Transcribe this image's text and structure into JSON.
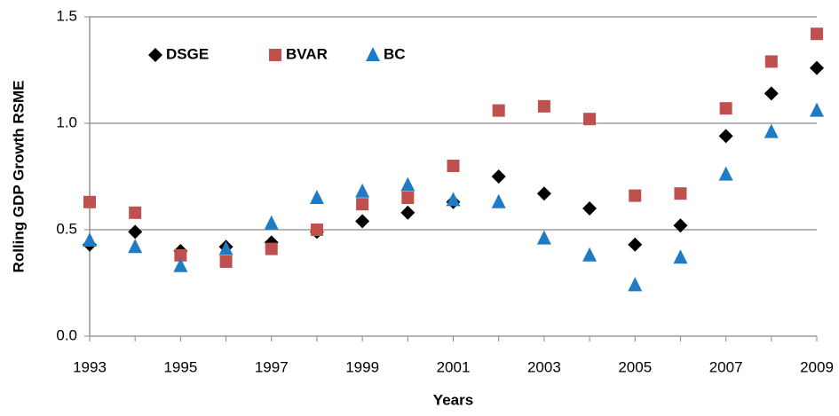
{
  "chart_data": {
    "type": "scatter",
    "x_label": "Years",
    "y_label": "Rolling GDP Growth RSME",
    "x": [
      1993,
      1994,
      1995,
      1996,
      1997,
      1998,
      1999,
      2000,
      2001,
      2002,
      2003,
      2004,
      2005,
      2006,
      2007,
      2008,
      2009
    ],
    "series": [
      {
        "name": "DSGE",
        "color": "#000000",
        "marker": "diamond",
        "values": [
          0.43,
          0.49,
          0.4,
          0.42,
          0.44,
          0.49,
          0.54,
          0.58,
          0.63,
          0.75,
          0.67,
          0.6,
          0.43,
          0.52,
          0.94,
          1.14,
          1.26
        ]
      },
      {
        "name": "BVAR",
        "color": "#c0504d",
        "marker": "square",
        "values": [
          0.63,
          0.58,
          0.38,
          0.35,
          0.41,
          0.5,
          0.62,
          0.65,
          0.8,
          1.06,
          1.08,
          1.02,
          0.66,
          0.67,
          1.07,
          1.29,
          1.42
        ]
      },
      {
        "name": "BC",
        "color": "#1f7bc4",
        "marker": "triangle",
        "values": [
          0.45,
          0.42,
          0.33,
          0.41,
          0.53,
          0.65,
          0.68,
          0.71,
          0.64,
          0.63,
          0.46,
          0.38,
          0.24,
          0.37,
          0.76,
          0.96,
          1.06
        ]
      }
    ],
    "xlim": [
      1993,
      2009
    ],
    "xticks": [
      1993,
      1995,
      1997,
      1999,
      2001,
      2003,
      2005,
      2007,
      2009
    ],
    "ylim": [
      0,
      1.5
    ],
    "yticks": [
      {
        "value": 0,
        "label": "0.0"
      },
      0.5,
      {
        "value": 1,
        "label": "1.0"
      },
      {
        "value": 1.5,
        "label": "1.5"
      }
    ],
    "grid": true,
    "legend": "top-left"
  }
}
